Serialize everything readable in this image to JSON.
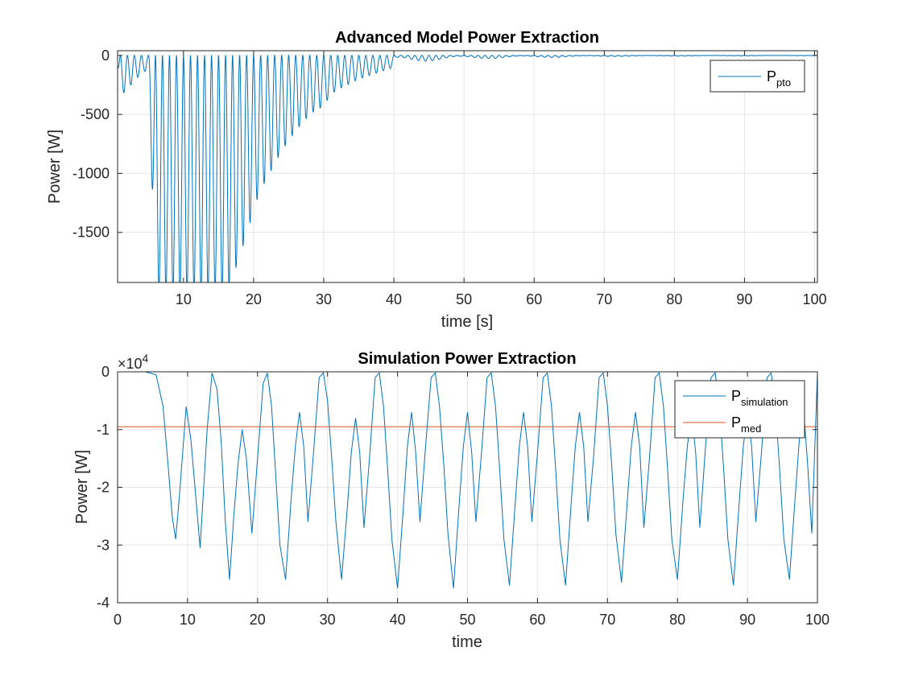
{
  "chart_data": [
    {
      "type": "line",
      "title": "Advanced Model Power Extraction",
      "xlabel": "time [s]",
      "ylabel": "Power [W]",
      "xlim": [
        0.6,
        100.4
      ],
      "ylim": [
        -1925,
        40
      ],
      "xticks": [
        10,
        20,
        30,
        40,
        50,
        60,
        70,
        80,
        90,
        100
      ],
      "yticks": [
        0,
        -500,
        -1000,
        -1500
      ],
      "grid": true,
      "legend_position": "top-right",
      "series": [
        {
          "name": "P",
          "name_sub": "pto",
          "color": "#0072bd",
          "description": "oscillating signal, period ~1 s, with trough envelope decaying from below -1925 W to about 0 W by 100 s",
          "trough_envelope": {
            "x": [
              0.6,
              1,
              2,
              3,
              4,
              5,
              6,
              7,
              8,
              10,
              12,
              14,
              15,
              16,
              17,
              18,
              19,
              20,
              21,
              22,
              23,
              24,
              25,
              26,
              27,
              28,
              29,
              30,
              31,
              32,
              33,
              34,
              35,
              36,
              37,
              38,
              39,
              40,
              41,
              42,
              43,
              44,
              45,
              46,
              47,
              48,
              49,
              50,
              52,
              55,
              60,
              65,
              70,
              75,
              80,
              85,
              90,
              95,
              100
            ],
            "y": [
              -100,
              -350,
              -280,
              -220,
              -150,
              -120,
              -2000,
              -2000,
              -2000,
              -2000,
              -2000,
              -2000,
              -2000,
              -2000,
              -1900,
              -1700,
              -1530,
              -1300,
              -1140,
              -1030,
              -920,
              -810,
              -720,
              -640,
              -570,
              -500,
              -460,
              -430,
              -330,
              -290,
              -260,
              -230,
              -200,
              -180,
              -160,
              -140,
              -120,
              -100,
              -70,
              -60,
              -55,
              -50,
              -48,
              -45,
              -42,
              -40,
              -38,
              -36,
              -30,
              -25,
              -20,
              -15,
              -10,
              -8,
              -6,
              -5,
              -4,
              -3,
              -2
            ]
          }
        }
      ]
    },
    {
      "type": "line",
      "title": "Simulation Power Extraction",
      "xlabel": "time",
      "ylabel": "Power [W]",
      "exponent_label": "×10",
      "exponent_power": "4",
      "xlim": [
        0,
        100
      ],
      "ylim": [
        -4,
        0
      ],
      "xticks": [
        0,
        10,
        20,
        30,
        40,
        50,
        60,
        70,
        80,
        90,
        100
      ],
      "yticks": [
        0,
        -1,
        -2,
        -3,
        -4
      ],
      "grid": true,
      "legend_position": "top-right",
      "series": [
        {
          "name": "P",
          "name_sub": "simulation",
          "color": "#0072bd",
          "description": "periodic extraction power with major troughs near -3.6e4 W every ~8 s and secondary troughs between",
          "x": [
            0,
            2,
            4,
            5.5,
            6.5,
            7.2,
            7.8,
            8.3,
            8.8,
            9.3,
            9.8,
            10.5,
            11.2,
            11.8,
            12.3,
            12.8,
            13.5,
            14.2,
            14.8,
            15.4,
            16.0,
            16.6,
            17.2,
            17.8,
            18.4,
            19.2,
            20.0,
            20.8,
            21.4,
            22.0,
            22.6,
            23.2,
            24.0,
            24.8,
            25.4,
            26.0,
            26.6,
            27.2,
            28.0,
            28.8,
            29.4,
            30.0,
            30.6,
            31.2,
            32.0,
            32.8,
            33.4,
            34.0,
            34.6,
            35.2,
            36.0,
            36.8,
            37.4,
            38.0,
            38.6,
            39.2,
            40.0,
            40.8,
            41.4,
            42.0,
            42.6,
            43.2,
            44.0,
            44.8,
            45.4,
            46.0,
            46.6,
            47.2,
            48.0,
            48.8,
            49.4,
            50.0,
            50.6,
            51.2,
            52.0,
            52.8,
            53.4,
            54.0,
            54.6,
            55.2,
            56.0,
            56.8,
            57.4,
            58.0,
            58.6,
            59.2,
            60.0,
            60.8,
            61.4,
            62.0,
            62.6,
            63.2,
            64.0,
            64.8,
            65.4,
            66.0,
            66.6,
            67.2,
            68.0,
            68.8,
            69.4,
            70.0,
            70.6,
            71.2,
            72.0,
            72.8,
            73.4,
            74.0,
            74.6,
            75.2,
            76.0,
            76.8,
            77.4,
            78.0,
            78.6,
            79.2,
            80.0,
            80.8,
            81.4,
            82.0,
            82.6,
            83.2,
            84.0,
            84.8,
            85.4,
            86.0,
            86.6,
            87.2,
            88.0,
            88.8,
            89.4,
            90.0,
            90.6,
            91.2,
            92.0,
            92.8,
            93.4,
            94.0,
            94.6,
            95.2,
            96.0,
            96.8,
            97.4,
            98.0,
            98.6,
            99.2,
            100
          ],
          "y": [
            0,
            0,
            0,
            -0.05,
            -0.6,
            -1.6,
            -2.5,
            -2.9,
            -2.2,
            -1.4,
            -0.6,
            -1.2,
            -2.2,
            -3.05,
            -2.0,
            -1.0,
            -0.02,
            -0.3,
            -1.2,
            -2.6,
            -3.6,
            -2.5,
            -1.6,
            -1.0,
            -1.5,
            -2.8,
            -1.5,
            -0.2,
            -0.02,
            -0.6,
            -1.8,
            -3.0,
            -3.6,
            -2.2,
            -1.3,
            -0.7,
            -1.3,
            -2.6,
            -1.4,
            -0.1,
            -0.02,
            -0.5,
            -1.5,
            -2.6,
            -3.6,
            -2.4,
            -1.4,
            -0.8,
            -1.4,
            -2.7,
            -1.5,
            -0.1,
            -0.02,
            -0.6,
            -1.7,
            -2.9,
            -3.75,
            -2.4,
            -1.3,
            -0.7,
            -1.4,
            -2.6,
            -1.3,
            -0.1,
            -0.02,
            -0.6,
            -1.6,
            -2.8,
            -3.75,
            -2.3,
            -1.3,
            -0.7,
            -1.4,
            -2.6,
            -1.4,
            -0.1,
            -0.02,
            -0.6,
            -1.7,
            -2.9,
            -3.7,
            -2.3,
            -1.3,
            -0.7,
            -1.3,
            -2.6,
            -1.4,
            -0.1,
            -0.02,
            -0.6,
            -1.7,
            -2.9,
            -3.7,
            -2.3,
            -1.3,
            -0.7,
            -1.3,
            -2.6,
            -1.5,
            -0.1,
            -0.02,
            -0.6,
            -1.6,
            -2.8,
            -3.65,
            -2.3,
            -1.3,
            -0.7,
            -1.3,
            -2.7,
            -1.5,
            -0.1,
            -0.02,
            -0.6,
            -1.7,
            -2.9,
            -3.6,
            -2.2,
            -1.3,
            -0.7,
            -1.4,
            -2.7,
            -1.3,
            -0.1,
            -0.02,
            -0.6,
            -1.7,
            -2.9,
            -3.7,
            -2.3,
            -1.3,
            -0.7,
            -1.3,
            -2.6,
            -1.4,
            -0.1,
            -0.02,
            -0.6,
            -1.7,
            -2.9,
            -3.6,
            -2.2,
            -1.2,
            -0.6,
            -1.6,
            -2.8,
            -0.02
          ]
        },
        {
          "name": "P",
          "name_sub": "med",
          "color": "#d95319",
          "x": [
            0,
            100
          ],
          "y": [
            -0.95,
            -0.95
          ]
        }
      ]
    }
  ]
}
